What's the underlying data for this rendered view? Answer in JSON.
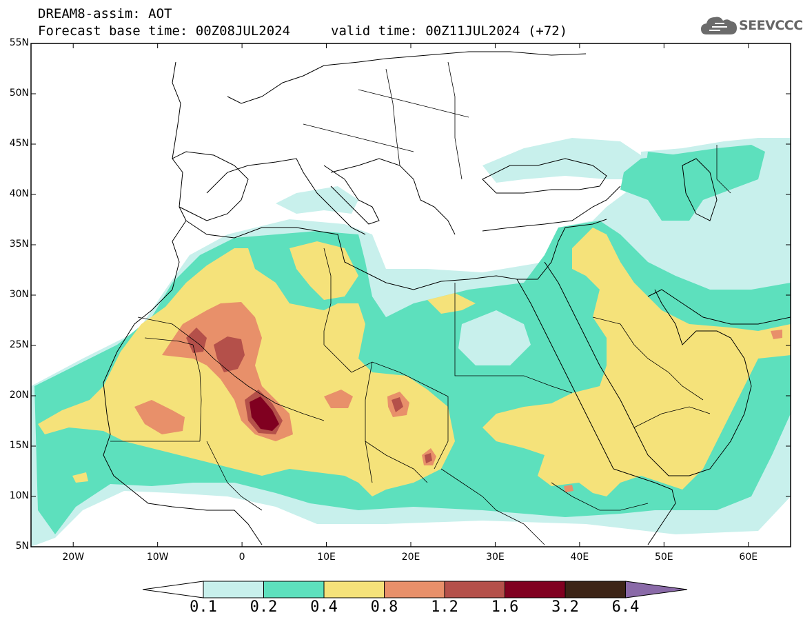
{
  "title": {
    "line1": "DREAM8-assim: AOT",
    "line2": "Forecast base time: 00Z08JUL2024",
    "valid": "valid time: 00Z11JUL2024 (+72)"
  },
  "logo": {
    "text": "SEEVCCC",
    "icon": "cloud-icon"
  },
  "map": {
    "lon_range": [
      -25,
      65
    ],
    "lat_range": [
      5,
      55
    ],
    "lat_labels": [
      "5N",
      "10N",
      "15N",
      "20N",
      "25N",
      "30N",
      "35N",
      "40N",
      "45N",
      "50N",
      "55N"
    ],
    "lon_labels": [
      "20W",
      "10W",
      "0",
      "10E",
      "20E",
      "30E",
      "40E",
      "50E",
      "60E"
    ],
    "colors": {
      "c1": "#c8f0ec",
      "c2": "#5de0bd",
      "c3": "#f5e27a",
      "c4": "#e8906a",
      "c5": "#b4504a",
      "c6": "#800020",
      "c7": "#3c2416",
      "c8": "#8a6aa8"
    }
  },
  "colorbar": {
    "labels": [
      "0.1",
      "0.2",
      "0.4",
      "0.8",
      "1.2",
      "1.6",
      "3.2",
      "6.4"
    ],
    "colors": [
      "#ffffff",
      "#c8f0ec",
      "#5de0bd",
      "#f5e27a",
      "#e8906a",
      "#b4504a",
      "#800020",
      "#3c2416",
      "#8a6aa8"
    ]
  }
}
